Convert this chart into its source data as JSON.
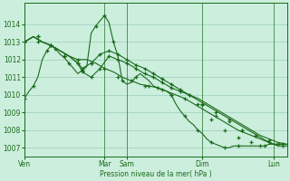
{
  "background_color": "#cceedd",
  "grid_color": "#99ccbb",
  "line_color": "#1a6b1a",
  "ylabel_text": "Pression niveau de la mer( hPa )",
  "ylim": [
    1006.5,
    1015.2
  ],
  "yticks": [
    1007,
    1008,
    1009,
    1010,
    1011,
    1012,
    1013,
    1014
  ],
  "xlim": [
    0,
    59
  ],
  "xtick_labels": [
    "Ven",
    "Mar",
    "Sam",
    "Dim",
    "Lun"
  ],
  "xtick_positions": [
    0,
    18,
    23,
    40,
    56
  ],
  "vlines": [
    0,
    18,
    23,
    40,
    56
  ],
  "series": [
    {
      "x": [
        0,
        1,
        2,
        3,
        4,
        5,
        6,
        7,
        8,
        9,
        10,
        11,
        12,
        13,
        14,
        15,
        16,
        17,
        18,
        19,
        20,
        21,
        22,
        23,
        24,
        25,
        26,
        27,
        28,
        29,
        30,
        31,
        32,
        33,
        34,
        35,
        36,
        37,
        38,
        39,
        40,
        41,
        42,
        43,
        44,
        45,
        46,
        47,
        48,
        49,
        50,
        51,
        52,
        53,
        54,
        55,
        56,
        57,
        58,
        59
      ],
      "y": [
        1009.8,
        1010.2,
        1010.5,
        1011.0,
        1012.0,
        1012.5,
        1012.8,
        1012.6,
        1012.3,
        1012.1,
        1011.8,
        1011.5,
        1011.2,
        1011.4,
        1011.6,
        1013.5,
        1013.9,
        1014.2,
        1014.5,
        1014.1,
        1013.0,
        1012.2,
        1010.8,
        1010.6,
        1010.7,
        1011.0,
        1011.2,
        1011.0,
        1010.8,
        1010.5,
        1010.4,
        1010.3,
        1010.2,
        1010.0,
        1009.5,
        1009.1,
        1008.8,
        1008.5,
        1008.3,
        1008.0,
        1007.8,
        1007.5,
        1007.3,
        1007.2,
        1007.1,
        1007.0,
        1007.0,
        1007.1,
        1007.1,
        1007.1,
        1007.1,
        1007.1,
        1007.1,
        1007.1,
        1007.1,
        1007.2,
        1007.2,
        1007.2,
        1007.2,
        1007.2
      ]
    },
    {
      "x": [
        0,
        2,
        4,
        6,
        8,
        10,
        12,
        14,
        16,
        18,
        20,
        22,
        24,
        26,
        28,
        30,
        32,
        34,
        36,
        38,
        40,
        42,
        44,
        46,
        48,
        50,
        52,
        54,
        56,
        58
      ],
      "y": [
        1013.0,
        1013.3,
        1013.0,
        1012.8,
        1012.5,
        1012.2,
        1012.0,
        1012.0,
        1011.8,
        1011.5,
        1011.3,
        1011.0,
        1010.8,
        1010.6,
        1010.5,
        1010.4,
        1010.2,
        1010.0,
        1009.8,
        1009.5,
        1009.2,
        1008.9,
        1008.6,
        1008.3,
        1008.0,
        1007.8,
        1007.6,
        1007.4,
        1007.2,
        1007.2
      ]
    },
    {
      "x": [
        0,
        2,
        4,
        6,
        8,
        10,
        12,
        13,
        15,
        17,
        19,
        21,
        23,
        25,
        27,
        29,
        31,
        33,
        35,
        37,
        39,
        41,
        43,
        45,
        47,
        49,
        51,
        53,
        55,
        57,
        59
      ],
      "y": [
        1013.0,
        1013.3,
        1013.0,
        1012.8,
        1012.5,
        1012.2,
        1011.8,
        1011.3,
        1011.0,
        1011.5,
        1012.2,
        1012.0,
        1011.8,
        1011.5,
        1011.2,
        1011.0,
        1010.7,
        1010.4,
        1010.2,
        1010.0,
        1009.8,
        1009.5,
        1009.2,
        1008.9,
        1008.6,
        1008.3,
        1008.0,
        1007.7,
        1007.5,
        1007.3,
        1007.2
      ]
    },
    {
      "x": [
        0,
        2,
        4,
        6,
        8,
        10,
        12,
        13,
        15,
        17,
        19,
        21,
        23,
        25,
        27,
        29,
        31,
        33,
        35,
        37,
        39,
        41,
        43,
        45,
        47,
        49,
        51,
        53,
        55,
        57,
        59
      ],
      "y": [
        1013.0,
        1013.3,
        1013.0,
        1012.8,
        1012.5,
        1012.2,
        1011.8,
        1011.5,
        1011.8,
        1012.3,
        1012.5,
        1012.3,
        1012.0,
        1011.7,
        1011.5,
        1011.2,
        1010.9,
        1010.6,
        1010.3,
        1010.0,
        1009.7,
        1009.4,
        1009.1,
        1008.8,
        1008.5,
        1008.2,
        1007.9,
        1007.6,
        1007.3,
        1007.1,
        1007.1
      ]
    }
  ],
  "marker_data": [
    {
      "x": [
        0,
        2,
        5,
        7,
        10,
        13,
        16,
        18,
        20,
        22,
        25,
        28,
        31,
        33,
        36,
        39,
        42,
        45,
        48,
        53,
        57
      ],
      "y": [
        1009.8,
        1010.5,
        1012.5,
        1012.6,
        1011.8,
        1011.4,
        1013.9,
        1014.5,
        1013.0,
        1010.8,
        1011.0,
        1010.5,
        1010.3,
        1010.0,
        1008.8,
        1008.0,
        1007.3,
        1007.0,
        1007.1,
        1007.1,
        1007.2
      ]
    },
    {
      "x": [
        0,
        3,
        6,
        9,
        12,
        15,
        18,
        21,
        24,
        27,
        30,
        33,
        36,
        39,
        42,
        45,
        48,
        51,
        54,
        57
      ],
      "y": [
        1013.0,
        1013.0,
        1012.8,
        1012.2,
        1012.0,
        1011.8,
        1011.5,
        1011.0,
        1010.8,
        1010.5,
        1010.4,
        1010.0,
        1009.8,
        1009.5,
        1008.6,
        1008.0,
        1007.6,
        1007.3,
        1007.1,
        1007.2
      ]
    },
    {
      "x": [
        0,
        3,
        6,
        9,
        12,
        13,
        15,
        17,
        19,
        21,
        23,
        25,
        27,
        29,
        31,
        33,
        35,
        37,
        40,
        43,
        46,
        49,
        52,
        55,
        58
      ],
      "y": [
        1013.0,
        1013.3,
        1012.8,
        1012.2,
        1011.8,
        1011.3,
        1011.0,
        1011.5,
        1012.2,
        1012.0,
        1011.8,
        1011.5,
        1011.2,
        1011.0,
        1010.7,
        1010.4,
        1010.2,
        1010.0,
        1009.5,
        1009.0,
        1008.6,
        1008.0,
        1007.7,
        1007.4,
        1007.2
      ]
    },
    {
      "x": [
        0,
        3,
        6,
        9,
        12,
        13,
        15,
        17,
        19,
        21,
        23,
        25,
        27,
        29,
        31,
        33,
        35,
        37,
        40,
        43,
        46,
        49,
        52,
        55,
        58
      ],
      "y": [
        1013.0,
        1013.3,
        1012.8,
        1012.2,
        1011.8,
        1011.5,
        1011.8,
        1012.3,
        1012.5,
        1012.3,
        1012.0,
        1011.7,
        1011.5,
        1011.2,
        1010.9,
        1010.6,
        1010.3,
        1010.0,
        1009.4,
        1008.8,
        1008.5,
        1008.0,
        1007.7,
        1007.3,
        1007.1
      ]
    }
  ]
}
